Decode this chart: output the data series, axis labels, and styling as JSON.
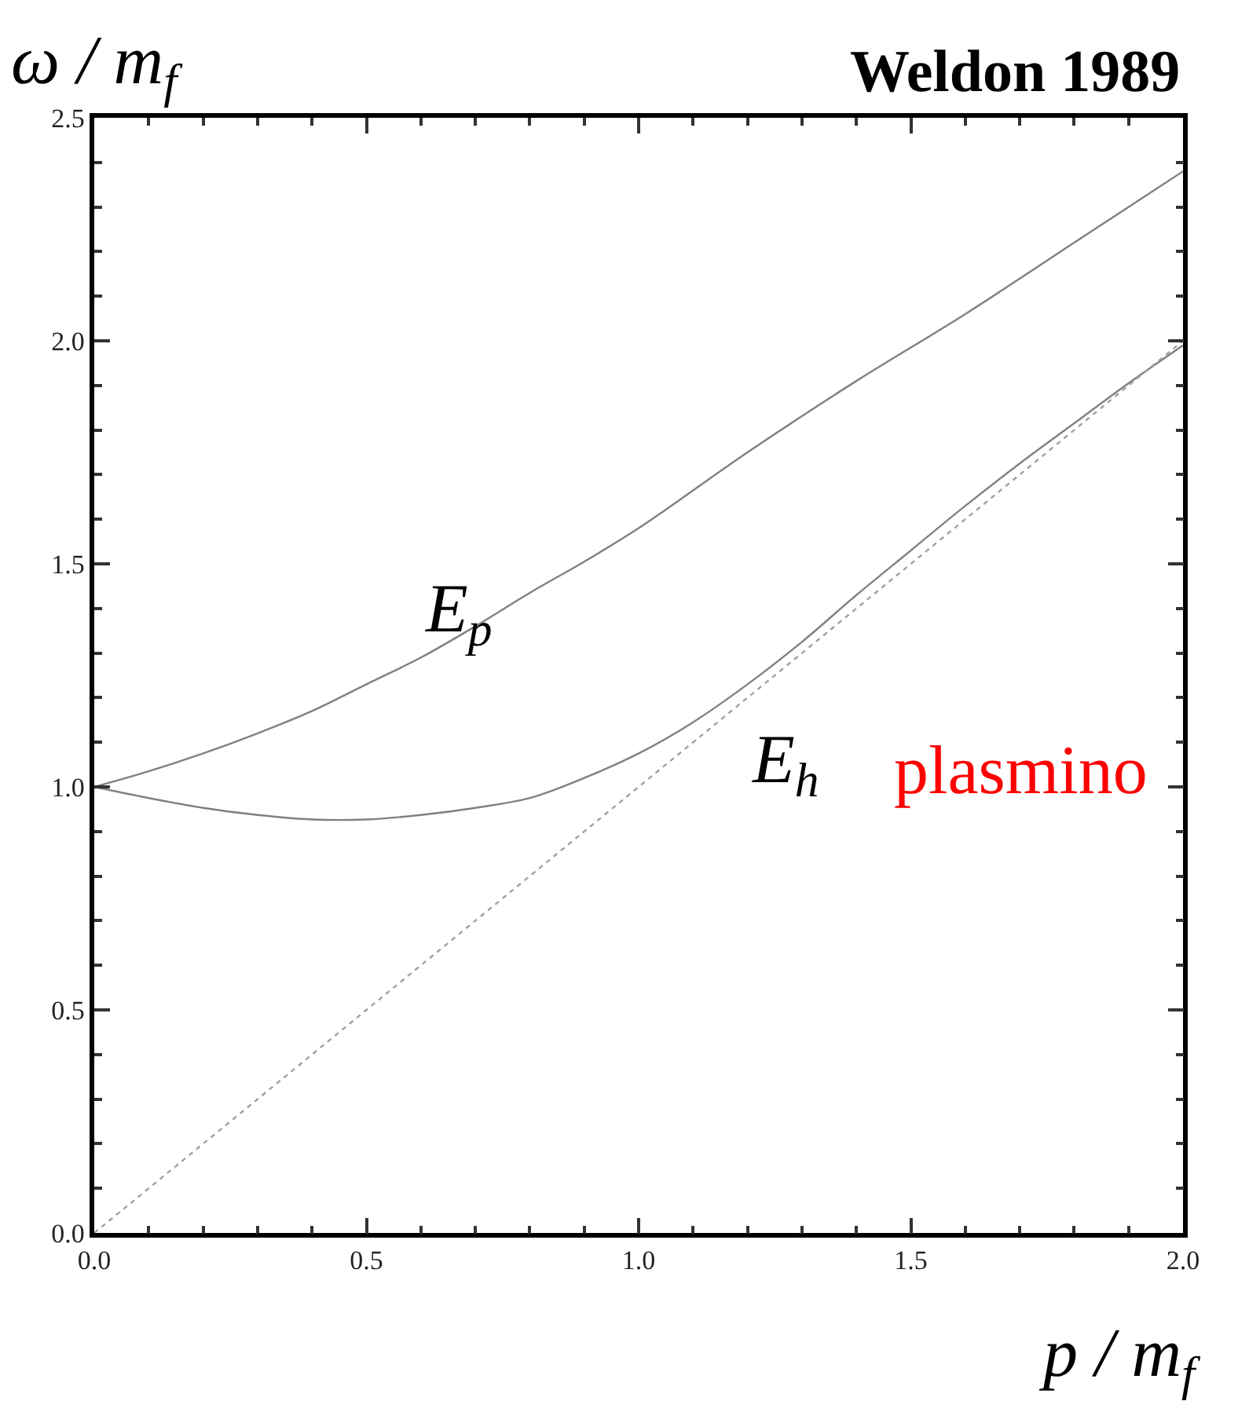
{
  "chart_data": {
    "type": "line",
    "title": "Weldon 1989",
    "xlabel": "p / m$_{f}$",
    "ylabel": "ω / m$_{f}$",
    "xlim": [
      0,
      2.0
    ],
    "ylim": [
      0,
      2.5
    ],
    "xticks": [
      {
        "value": 0,
        "label": "0.0"
      },
      0.5,
      {
        "value": 1,
        "label": "1.0"
      },
      1.5,
      {
        "value": 2,
        "label": "2.0"
      }
    ],
    "yticks": [
      {
        "value": 0,
        "label": "0.0"
      },
      0.5,
      {
        "value": 1,
        "label": "1.0"
      },
      1.5,
      {
        "value": 2,
        "label": "2.0"
      },
      2.5
    ],
    "legend": false,
    "marker": "none",
    "annotations": [
      "plasmino"
    ],
    "series": [
      {
        "name": "E$_{p}$",
        "color": "#808080",
        "line_style": "solid",
        "x": [
          0,
          0.1,
          0.2,
          0.3,
          0.4,
          0.5,
          0.6,
          0.7,
          0.8,
          0.9,
          1.0,
          1.2,
          1.4,
          1.6,
          1.8,
          2.0
        ],
        "values": [
          1.0,
          1.035,
          1.075,
          1.12,
          1.17,
          1.23,
          1.29,
          1.36,
          1.435,
          1.505,
          1.58,
          1.75,
          1.91,
          2.06,
          2.22,
          2.38
        ]
      },
      {
        "name": "E$_{h}$",
        "color": "#808080",
        "line_style": "solid",
        "x": [
          0,
          0.1,
          0.2,
          0.3,
          0.4,
          0.5,
          0.6,
          0.7,
          0.8,
          0.9,
          1.0,
          1.1,
          1.2,
          1.3,
          1.4,
          1.5,
          1.6,
          1.7,
          1.8,
          1.9,
          2.0
        ],
        "values": [
          1.0,
          0.975,
          0.953,
          0.937,
          0.927,
          0.927,
          0.937,
          0.953,
          0.975,
          1.02,
          1.075,
          1.145,
          1.23,
          1.325,
          1.43,
          1.53,
          1.63,
          1.725,
          1.815,
          1.905,
          1.99
        ]
      },
      {
        "color": "#a0a0a0",
        "line_style": "dotted",
        "x": [
          0,
          2.0
        ],
        "values": [
          0,
          2.0
        ]
      }
    ]
  }
}
